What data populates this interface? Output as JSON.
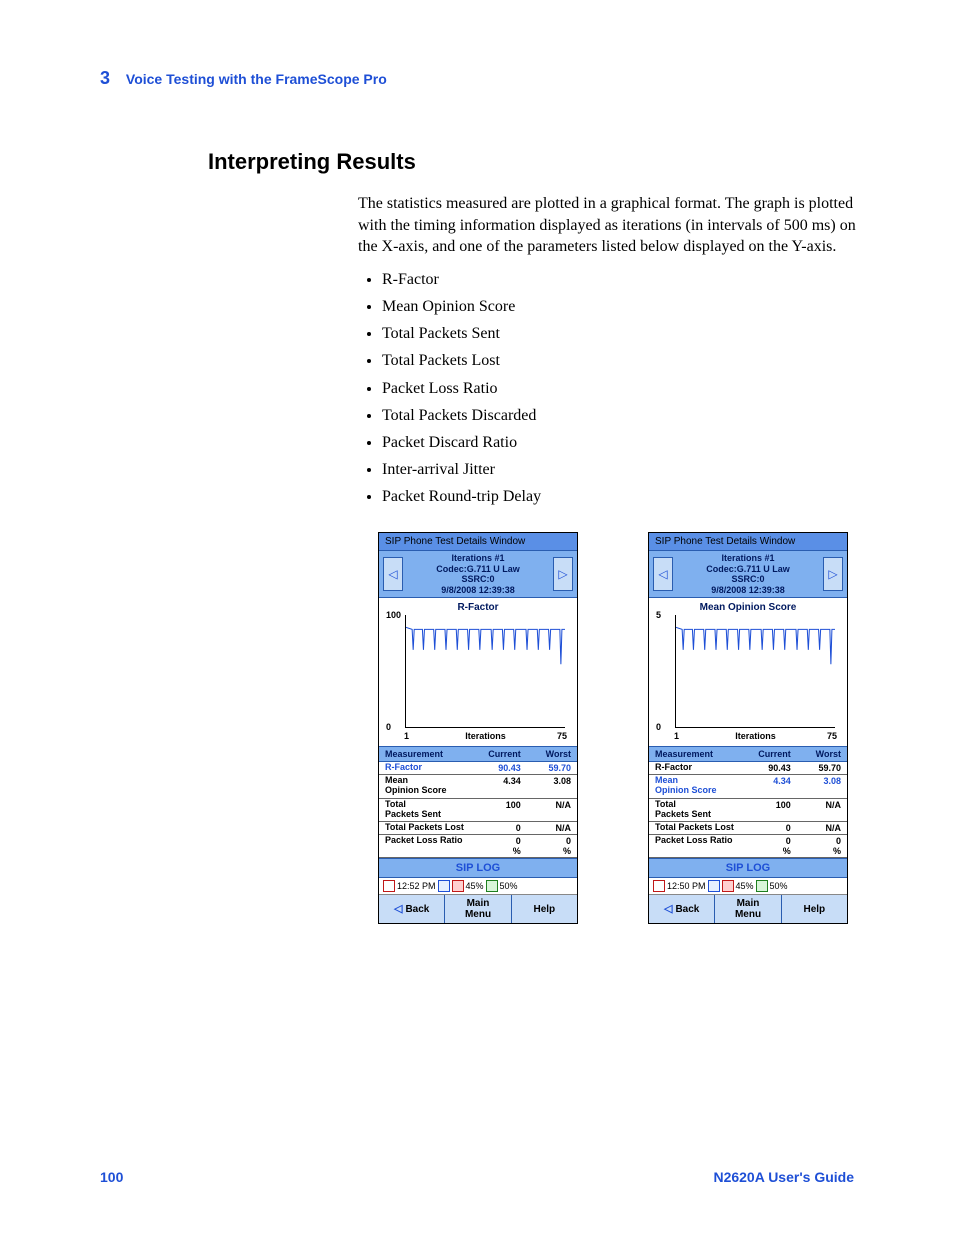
{
  "header": {
    "chapter_number": "3",
    "chapter_title": "Voice Testing with the FrameScope Pro"
  },
  "section_title": "Interpreting Results",
  "intro_paragraph": "The statistics measured are plotted in a graphical format. The graph is plotted with the timing information displayed as iterations (in intervals of 500 ms) on the X-axis, and one of the parameters listed below displayed on the Y-axis.",
  "parameters": [
    "R-Factor",
    "Mean Opinion Score",
    "Total Packets Sent",
    "Total Packets Lost",
    "Packet Loss Ratio",
    "Total Packets Discarded",
    "Packet Discard Ratio",
    "Inter-arrival Jitter",
    "Packet Round-trip Delay"
  ],
  "screens": {
    "common": {
      "window_title": "SIP Phone Test Details Window",
      "info": {
        "line1": "Iterations #1",
        "line2": "Codec:G.711 U Law",
        "line3": "SSRC:0",
        "line4": "9/8/2008 12:39:38"
      },
      "chart": {
        "x_axis_label": "Iterations",
        "x_min": "1",
        "x_max": "75",
        "waveform_color": "#1e4fd6",
        "waveform_points": [
          [
            0,
            12
          ],
          [
            6,
            14
          ],
          [
            7,
            34
          ],
          [
            8,
            14
          ],
          [
            16,
            14
          ],
          [
            17,
            34
          ],
          [
            18,
            14
          ],
          [
            27,
            14
          ],
          [
            28,
            34
          ],
          [
            29,
            14
          ],
          [
            38,
            14
          ],
          [
            39,
            34
          ],
          [
            40,
            14
          ],
          [
            49,
            14
          ],
          [
            50,
            34
          ],
          [
            51,
            14
          ],
          [
            60,
            14
          ],
          [
            61,
            34
          ],
          [
            62,
            14
          ],
          [
            71,
            14
          ],
          [
            72,
            34
          ],
          [
            73,
            14
          ],
          [
            83,
            14
          ],
          [
            84,
            34
          ],
          [
            85,
            14
          ],
          [
            94,
            14
          ],
          [
            95,
            34
          ],
          [
            96,
            14
          ],
          [
            105,
            14
          ],
          [
            106,
            34
          ],
          [
            107,
            14
          ],
          [
            117,
            14
          ],
          [
            118,
            34
          ],
          [
            119,
            14
          ],
          [
            128,
            14
          ],
          [
            129,
            34
          ],
          [
            130,
            14
          ],
          [
            139,
            14
          ],
          [
            140,
            34
          ],
          [
            141,
            14
          ],
          [
            150,
            14
          ],
          [
            151,
            48
          ],
          [
            152,
            14
          ],
          [
            155,
            14
          ]
        ]
      },
      "table_header": {
        "c1": "Measurement",
        "c2": "Current",
        "c3": "Worst"
      },
      "rows": [
        {
          "label": "R-Factor",
          "cur": "90.43",
          "wor": "59.70",
          "multiline": false
        },
        {
          "label": "Mean Opinion Score",
          "cur": "4.34",
          "wor": "3.08",
          "multiline": true
        },
        {
          "label": "Total Packets Sent",
          "cur": "100",
          "wor": "N/A",
          "multiline": true
        },
        {
          "label": "Total Packets Lost",
          "cur": "0",
          "wor": "N/A",
          "multiline": false
        },
        {
          "label": "Packet Loss Ratio",
          "cur": "0 %",
          "wor": "0 %",
          "multiline": false,
          "ratio": true
        }
      ],
      "siplog_label": "SIP LOG",
      "softkeys": {
        "back": "Back",
        "menu_l1": "Main",
        "menu_l2": "Menu",
        "help": "Help"
      }
    },
    "left": {
      "chart_title": "R-Factor",
      "y_max": "100",
      "y_min": "0",
      "highlight_index": 0,
      "status": {
        "time": "12:52 PM",
        "pct1": "45%",
        "pct2": "50%"
      }
    },
    "right": {
      "chart_title": "Mean Opinion Score",
      "y_max": "5",
      "y_min": "0",
      "highlight_index": 1,
      "status": {
        "time": "12:50 PM",
        "pct1": "45%",
        "pct2": "50%"
      }
    }
  },
  "footer": {
    "page_number": "100",
    "guide_name": "N2620A User's Guide"
  },
  "colors": {
    "brand_blue": "#1e4fd6",
    "titlebar_bg": "#5a8fe6",
    "strip_bg": "#7fb0ef",
    "button_bg": "#c8ddf7",
    "dark_text": "#00195f"
  }
}
